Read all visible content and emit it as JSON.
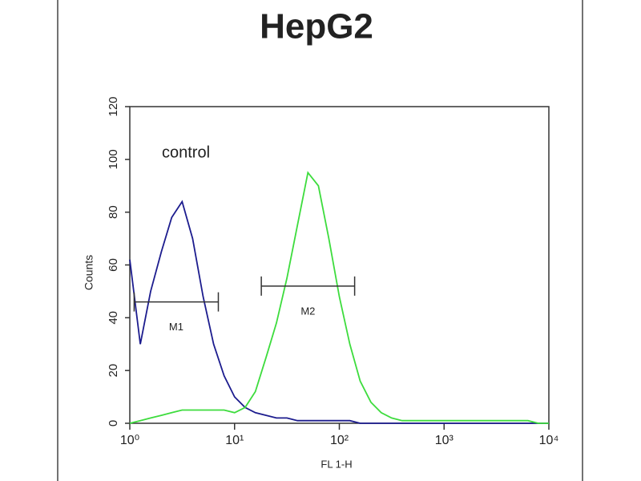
{
  "chart_data": {
    "type": "line",
    "title": "HepG2",
    "x_label": "FL 1-H",
    "y_label": "Counts",
    "annotation": "control",
    "xscale": "log",
    "x": [
      1,
      1.26,
      1.58,
      2,
      2.51,
      3.16,
      3.98,
      5.01,
      6.31,
      7.94,
      10,
      12.6,
      15.8,
      20,
      25.1,
      31.6,
      39.8,
      50.1,
      63.1,
      79.4,
      100,
      126,
      158,
      200,
      251,
      316,
      398,
      501,
      631,
      794,
      1000,
      1260,
      1580,
      2000,
      2510,
      3160,
      3980,
      5010,
      6310,
      7940,
      10000
    ],
    "series": [
      {
        "color": "#1c1c8e",
        "values": [
          62,
          30,
          50,
          65,
          78,
          84,
          70,
          48,
          30,
          18,
          10,
          6,
          4,
          3,
          2,
          2,
          1,
          1,
          1,
          1,
          1,
          1,
          0,
          0,
          0,
          0,
          0,
          0,
          0,
          0,
          0,
          0,
          0,
          0,
          0,
          0,
          0,
          0,
          0,
          0,
          0
        ]
      },
      {
        "color": "#3ddc3d",
        "values": [
          0,
          1,
          2,
          3,
          4,
          5,
          5,
          5,
          5,
          5,
          4,
          6,
          12,
          25,
          38,
          55,
          75,
          95,
          90,
          70,
          48,
          30,
          16,
          8,
          4,
          2,
          1,
          1,
          1,
          1,
          1,
          1,
          1,
          1,
          1,
          1,
          1,
          1,
          1,
          0,
          0
        ]
      }
    ],
    "markers": [
      {
        "label": "M1",
        "x": [
          1.1,
          7
        ],
        "y": 46
      },
      {
        "label": "M2",
        "x": [
          18,
          140
        ],
        "y": 52
      }
    ],
    "xlim": [
      1,
      10000
    ],
    "xticks": [
      {
        "value": 1,
        "label": "10⁰"
      },
      {
        "value": 10,
        "label": "10¹"
      },
      {
        "value": 100,
        "label": "10²"
      },
      {
        "value": 1000,
        "label": "10³"
      },
      {
        "value": 10000,
        "label": "10⁴"
      }
    ],
    "ylim": [
      0,
      120
    ],
    "yticks": [
      0,
      20,
      40,
      60,
      80,
      100,
      120
    ]
  }
}
